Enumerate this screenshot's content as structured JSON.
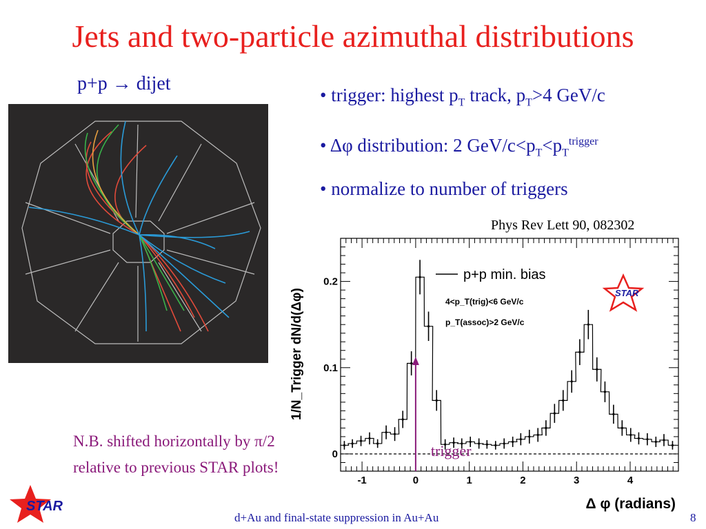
{
  "slide": {
    "title": "Jets and two-particle azimuthal distributions",
    "subhead": "p+p → dijet",
    "bullets": [
      {
        "pre": "• trigger: highest p",
        "s1": "T",
        "mid": " track, p",
        "s2": "T",
        "post": ">4 GeV/c"
      },
      {
        "pre": "• Δφ distribution: 2 GeV/c<p",
        "s1": "T",
        "mid": "<p",
        "s2": "T",
        "sup": "trigger"
      },
      {
        "pre": "• normalize to number of triggers"
      }
    ],
    "citation": "Phys Rev Lett 90, 082302",
    "note_line1": "N.B. shifted horizontally by π/2",
    "note_line2": "relative to previous STAR plots!",
    "footer": "d+Au and final-state suppression in Au+Au",
    "page_number": "8",
    "logo_text": "STAR"
  },
  "colors": {
    "title": "#e8201e",
    "text": "#1a1aa0",
    "note": "#8a1a7a",
    "trigger_arrow": "#8a1a7a",
    "track_red": "#e04a3a",
    "track_green": "#3ab34a",
    "track_blue": "#2a9bd8",
    "track_orange": "#e8a040",
    "event_bg": "#2a2828"
  },
  "chart_data": {
    "type": "line",
    "style": "histogram",
    "xlabel": "Δ φ (radians)",
    "ylabel": "1/N_Trigger dN/d(Δφ)",
    "xlim": [
      -1.4,
      4.9
    ],
    "ylim": [
      -0.02,
      0.25
    ],
    "xticks": [
      -1,
      0,
      1,
      2,
      3,
      4
    ],
    "xtick_labels": [
      "-1",
      "0",
      "1",
      "2",
      "3",
      "4"
    ],
    "yticks": [
      0,
      0.1,
      0.2
    ],
    "ytick_labels": [
      "0",
      "0.1",
      "0.2"
    ],
    "legend": "p+p min. bias",
    "legend_position": "top-right",
    "annotations": [
      "4<p_T(trig)<6 GeV/c",
      "p_T(assoc)>2 GeV/c"
    ],
    "zero_line": "dashed",
    "bin_width": 0.157,
    "x": [
      -1.33,
      -1.18,
      -1.02,
      -0.86,
      -0.71,
      -0.55,
      -0.39,
      -0.24,
      -0.08,
      0.08,
      0.24,
      0.39,
      0.55,
      0.71,
      0.86,
      1.02,
      1.18,
      1.33,
      1.49,
      1.65,
      1.81,
      1.96,
      2.12,
      2.28,
      2.43,
      2.59,
      2.75,
      2.91,
      3.06,
      3.22,
      3.38,
      3.53,
      3.69,
      3.85,
      4.01,
      4.16,
      4.32,
      4.48,
      4.63,
      4.79
    ],
    "y": [
      0.01,
      0.012,
      0.015,
      0.018,
      0.012,
      0.025,
      0.023,
      0.04,
      0.105,
      0.205,
      0.148,
      0.062,
      0.011,
      0.013,
      0.012,
      0.014,
      0.012,
      0.011,
      0.01,
      0.012,
      0.014,
      0.017,
      0.02,
      0.022,
      0.03,
      0.047,
      0.062,
      0.084,
      0.118,
      0.15,
      0.098,
      0.072,
      0.046,
      0.03,
      0.022,
      0.018,
      0.017,
      0.014,
      0.016,
      0.01
    ],
    "err": [
      0.005,
      0.005,
      0.006,
      0.007,
      0.005,
      0.008,
      0.008,
      0.01,
      0.014,
      0.02,
      0.017,
      0.012,
      0.006,
      0.006,
      0.006,
      0.006,
      0.006,
      0.005,
      0.005,
      0.006,
      0.006,
      0.007,
      0.008,
      0.008,
      0.009,
      0.011,
      0.012,
      0.013,
      0.015,
      0.017,
      0.014,
      0.012,
      0.011,
      0.009,
      0.008,
      0.007,
      0.007,
      0.006,
      0.007,
      0.005
    ],
    "trigger_label": "trigger",
    "trigger_x": 0,
    "logo": "STAR"
  }
}
